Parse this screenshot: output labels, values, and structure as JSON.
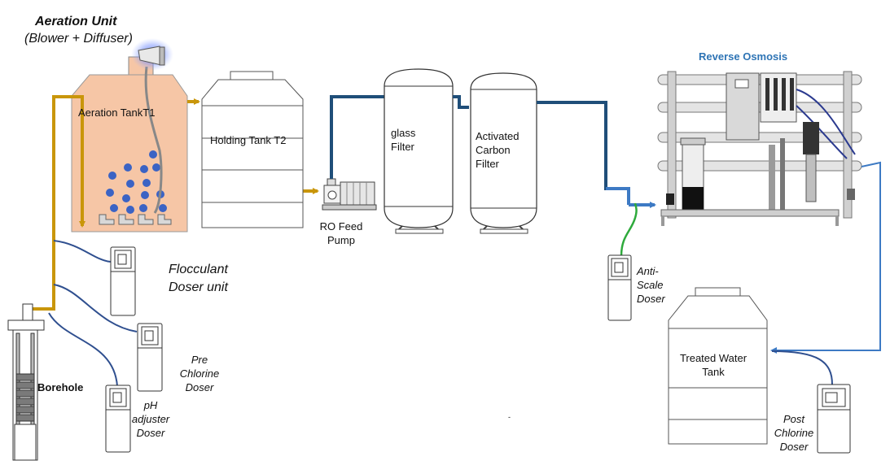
{
  "colors": {
    "feed_pipe": "#c9960a",
    "transfer_pipe": "#1f4e79",
    "product_pipe": "#3d7ac4",
    "antiscale_line": "#2eaa3c",
    "dosing_line": "#2f4f8f",
    "aeration_tank_fill": "#f6c6a6",
    "diffuser_bubble": "#3b63c4",
    "ro_title": "#2e74b5"
  },
  "labels": {
    "aeration_unit_title": "Aeration Unit",
    "aeration_unit_subtitle": "(Blower + Diffuser)",
    "aeration_tank": "Aeration TankT1",
    "holding_tank": "Holding Tank T2",
    "ro_feed_pump_line1": "RO Feed",
    "ro_feed_pump_line2": "Pump",
    "glass_filter_line1": "glass",
    "glass_filter_line2": "Filter",
    "carbon_filter_line1": "Activated",
    "carbon_filter_line2": "Carbon",
    "carbon_filter_line3": "Filter",
    "reverse_osmosis": "Reverse Osmosis",
    "flocculant_line1": "Flocculant",
    "flocculant_line2": "Doser unit",
    "pre_chlorine_line1": "Pre",
    "pre_chlorine_line2": "Chlorine",
    "pre_chlorine_line3": "Doser",
    "ph_line1": "pH",
    "ph_line2": "adjuster",
    "ph_line3": "Doser",
    "borehole": "Borehole",
    "anti_scale_line1": "Anti-",
    "anti_scale_line2": "Scale",
    "anti_scale_line3": "Doser",
    "treated_tank_line1": "Treated Water",
    "treated_tank_line2": "Tank",
    "post_chlorine_line1": "Post",
    "post_chlorine_line2": "Chlorine",
    "post_chlorine_line3": "Doser",
    "stray_mark": "-"
  },
  "icons": {
    "blower": "blower-icon",
    "pump": "pump-icon",
    "doser": "dosing-pump-icon",
    "borehole": "borehole-pump-icon",
    "ro_skid": "ro-skid-icon"
  }
}
